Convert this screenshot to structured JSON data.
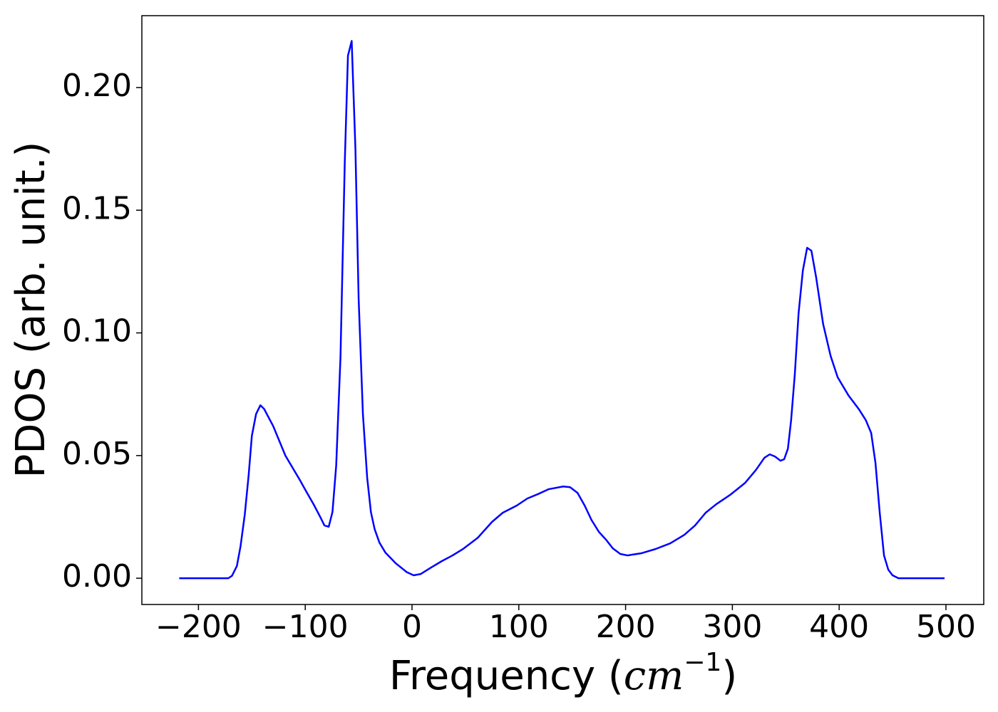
{
  "chart_data": {
    "type": "line",
    "x_label": [
      "Frequency (",
      "cm",
      "−1",
      ")"
    ],
    "y_label": "PDOS (arb. unit.)",
    "series": [
      {
        "color": "#0000ff",
        "x": [
          -218,
          -172,
          -168.6,
          -164,
          -160.6,
          -156.6,
          -153,
          -150,
          -146,
          -142,
          -138.5,
          -130,
          -118.6,
          -105,
          -98.6,
          -92,
          -86,
          -82,
          -78,
          -74.5,
          -71,
          -67,
          -63,
          -60,
          -56.5,
          -53,
          -50,
          -46,
          -42,
          -38.5,
          -35,
          -30.5,
          -25,
          -15,
          -5,
          1.5,
          8,
          18,
          28,
          38,
          48,
          61.6,
          75,
          85,
          98,
          108,
          118,
          128,
          141.6,
          148,
          155,
          161.7,
          168,
          175,
          181.7,
          188,
          195,
          201.7,
          215,
          228,
          241.7,
          255,
          265,
          275,
          285,
          298,
          312,
          322,
          330,
          335,
          340,
          345,
          348.5,
          352,
          355,
          358.5,
          362,
          366,
          370,
          374,
          378.5,
          385,
          392,
          398.6,
          408.6,
          418.6,
          425,
          430,
          434,
          438,
          442,
          446,
          450,
          455.5,
          498.7
        ],
        "values": [
          0,
          0,
          0.001,
          0.005,
          0.013,
          0.026,
          0.042,
          0.058,
          0.067,
          0.0705,
          0.069,
          0.062,
          0.05,
          0.04,
          0.035,
          0.03,
          0.025,
          0.0215,
          0.021,
          0.027,
          0.046,
          0.09,
          0.169,
          0.213,
          0.219,
          0.175,
          0.114,
          0.067,
          0.041,
          0.027,
          0.02,
          0.0145,
          0.0105,
          0.006,
          0.0025,
          0.0012,
          0.0017,
          0.0044,
          0.007,
          0.0093,
          0.012,
          0.0165,
          0.023,
          0.0267,
          0.0296,
          0.0325,
          0.0343,
          0.0363,
          0.0374,
          0.0371,
          0.0348,
          0.0296,
          0.0238,
          0.0189,
          0.0157,
          0.0122,
          0.0099,
          0.0093,
          0.0102,
          0.0119,
          0.0142,
          0.0177,
          0.0215,
          0.0267,
          0.0302,
          0.034,
          0.0389,
          0.0441,
          0.0491,
          0.0505,
          0.0496,
          0.0479,
          0.0485,
          0.0528,
          0.0644,
          0.0833,
          0.108,
          0.1254,
          0.1347,
          0.1335,
          0.1225,
          0.1036,
          0.0906,
          0.0819,
          0.0746,
          0.0688,
          0.0644,
          0.0592,
          0.047,
          0.0267,
          0.0093,
          0.0035,
          0.0012,
          0,
          0
        ]
      }
    ],
    "xlim": [
      -253,
      535.4
    ],
    "ylim": [
      -0.0107,
      0.2293
    ],
    "xticks": [
      {
        "value": -200,
        "label": "−200"
      },
      {
        "value": -100,
        "label": "−100"
      },
      0,
      100,
      200,
      300,
      400,
      500
    ],
    "yticks": [
      {
        "value": 0,
        "label": "0.00"
      },
      {
        "value": 0.05,
        "label": "0.05"
      },
      {
        "value": 0.1,
        "label": "0.10"
      },
      {
        "value": 0.15,
        "label": "0.15"
      },
      {
        "value": 0.2,
        "label": "0.20"
      }
    ]
  }
}
